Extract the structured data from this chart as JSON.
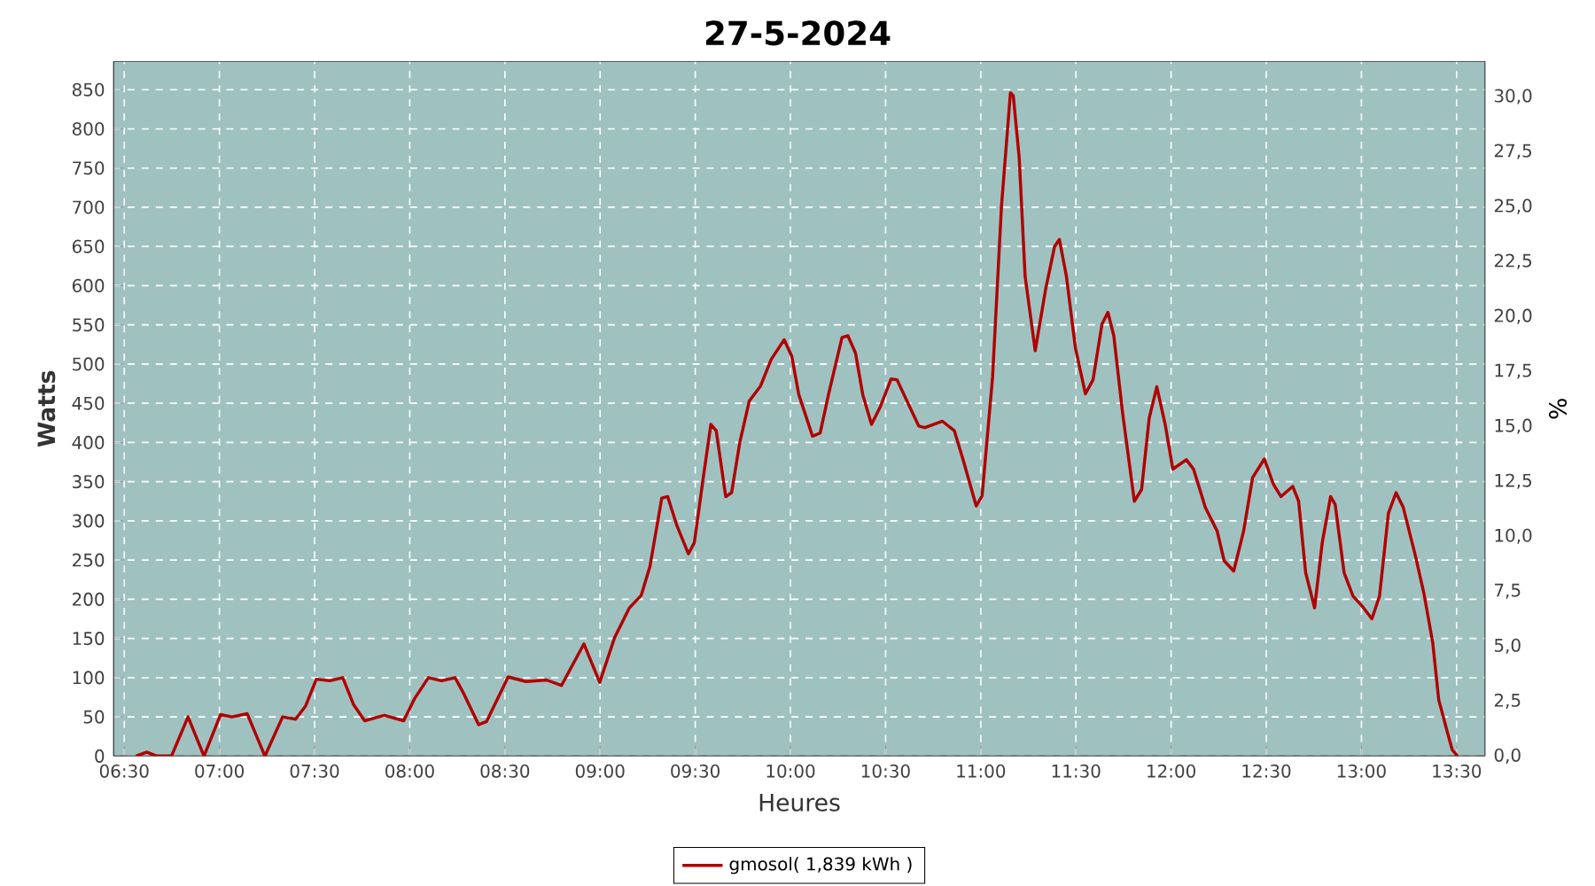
{
  "chart_data": {
    "type": "line",
    "title": "27-5-2024",
    "xlabel": "Heures",
    "ylabel": "Watts",
    "y2label": "%",
    "xlim": [
      6.443,
      13.65
    ],
    "xticks": [
      {
        "value": 6.5,
        "label": "06:30"
      },
      {
        "value": 7,
        "label": "07:00"
      },
      {
        "value": 7.5,
        "label": "07:30"
      },
      {
        "value": 8,
        "label": "08:00"
      },
      {
        "value": 8.5,
        "label": "08:30"
      },
      {
        "value": 9,
        "label": "09:00"
      },
      {
        "value": 9.5,
        "label": "09:30"
      },
      {
        "value": 10,
        "label": "10:00"
      },
      {
        "value": 10.5,
        "label": "10:30"
      },
      {
        "value": 11,
        "label": "11:00"
      },
      {
        "value": 11.5,
        "label": "11:30"
      },
      {
        "value": 12,
        "label": "12:00"
      },
      {
        "value": 12.5,
        "label": "12:30"
      },
      {
        "value": 13,
        "label": "13:00"
      },
      {
        "value": 13.5,
        "label": "13:30"
      }
    ],
    "ylim": [
      0,
      886
    ],
    "yticks": [
      0,
      50,
      100,
      150,
      200,
      250,
      300,
      350,
      400,
      450,
      500,
      550,
      600,
      650,
      700,
      750,
      800,
      850
    ],
    "y2lim": [
      0,
      31.6
    ],
    "y2ticks": [
      {
        "value": 0,
        "label": "0,0"
      },
      {
        "value": 2.5,
        "label": "2,5"
      },
      {
        "value": 5,
        "label": "5,0"
      },
      {
        "value": 7.5,
        "label": "7,5"
      },
      {
        "value": 10,
        "label": "10,0"
      },
      {
        "value": 12.5,
        "label": "12,5"
      },
      {
        "value": 15,
        "label": "15,0"
      },
      {
        "value": 17.5,
        "label": "17,5"
      },
      {
        "value": 20,
        "label": "20,0"
      },
      {
        "value": 22.5,
        "label": "22,5"
      },
      {
        "value": 25,
        "label": "25,0"
      },
      {
        "value": 27.5,
        "label": "27,5"
      },
      {
        "value": 30,
        "label": "30,0"
      }
    ],
    "grid": true,
    "legend": "bottom",
    "marker": "none",
    "line_style": "solid",
    "series": [
      {
        "name": "gmosol( 1,839 kWh )",
        "color": "#b00000",
        "x": [
          6.562,
          6.618,
          6.671,
          6.748,
          6.835,
          6.919,
          7.006,
          7.065,
          7.146,
          7.239,
          7.332,
          7.4,
          7.453,
          7.509,
          7.58,
          7.648,
          7.704,
          7.763,
          7.866,
          7.968,
          8.027,
          8.098,
          8.167,
          8.238,
          8.285,
          8.362,
          8.403,
          8.517,
          8.611,
          8.719,
          8.797,
          8.915,
          8.998,
          9.076,
          9.154,
          9.216,
          9.262,
          9.324,
          9.355,
          9.402,
          9.464,
          9.495,
          9.542,
          9.582,
          9.61,
          9.66,
          9.691,
          9.734,
          9.784,
          9.843,
          9.899,
          9.967,
          10.007,
          10.044,
          10.116,
          10.156,
          10.2,
          10.271,
          10.302,
          10.342,
          10.38,
          10.426,
          10.473,
          10.529,
          10.56,
          10.612,
          10.674,
          10.706,
          10.799,
          10.861,
          10.907,
          10.976,
          11.007,
          11.062,
          11.109,
          11.156,
          11.171,
          11.202,
          11.233,
          11.286,
          11.342,
          11.388,
          11.413,
          11.45,
          11.497,
          11.55,
          11.59,
          11.637,
          11.668,
          11.699,
          11.745,
          11.807,
          11.845,
          11.885,
          11.925,
          11.969,
          12.009,
          12.08,
          12.118,
          12.18,
          12.242,
          12.279,
          12.329,
          12.381,
          12.428,
          12.49,
          12.537,
          12.577,
          12.639,
          12.67,
          12.707,
          12.754,
          12.794,
          12.838,
          12.862,
          12.909,
          12.956,
          13.008,
          13.055,
          13.095,
          13.142,
          13.182,
          13.22,
          13.282,
          13.328,
          13.375,
          13.406,
          13.452,
          13.477,
          13.505
        ],
        "values": [
          0,
          5,
          0,
          0,
          50,
          0,
          53,
          50,
          54,
          0,
          50,
          47,
          64,
          98,
          96,
          100,
          66,
          45,
          52,
          45,
          74,
          100,
          96,
          100,
          79,
          40,
          44,
          101,
          95,
          97,
          90,
          143,
          94,
          151,
          189,
          205,
          242,
          329,
          331,
          295,
          258,
          272,
          355,
          423,
          415,
          331,
          336,
          400,
          453,
          472,
          506,
          531,
          510,
          461,
          408,
          412,
          461,
          534,
          536,
          514,
          461,
          423,
          446,
          481,
          480,
          453,
          421,
          419,
          427,
          415,
          378,
          319,
          332,
          483,
          702,
          846,
          842,
          763,
          612,
          517,
          597,
          650,
          659,
          612,
          521,
          462,
          480,
          551,
          566,
          536,
          438,
          325,
          340,
          431,
          471,
          423,
          366,
          378,
          366,
          317,
          287,
          249,
          236,
          287,
          355,
          379,
          347,
          331,
          344,
          325,
          234,
          189,
          272,
          331,
          321,
          234,
          204,
          190,
          175,
          204,
          310,
          336,
          317,
          257,
          208,
          144,
          72,
          30,
          8,
          0
        ]
      }
    ]
  }
}
